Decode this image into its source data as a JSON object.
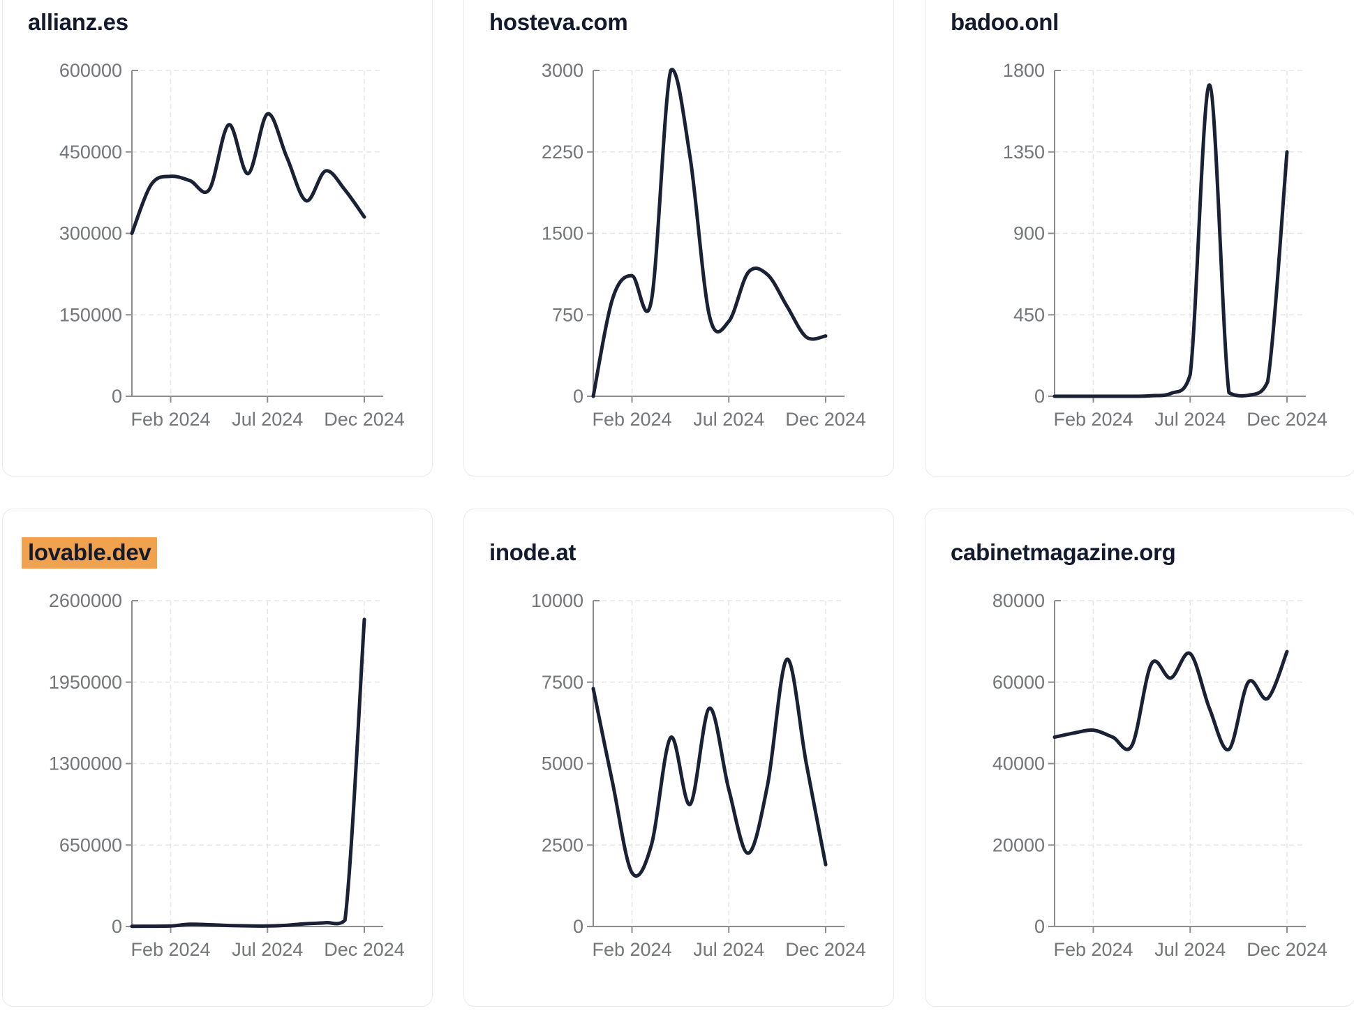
{
  "style": {
    "line_color": "#1a2135",
    "axis_color": "#8b8d91",
    "tick_label_color": "#737579",
    "grid_color": "#e5e6ea",
    "title_color": "#141a2e",
    "card_border": "#e7e9ee",
    "highlight_color": "#F0A24E",
    "card_background": "#ffffff"
  },
  "chart_data": [
    {
      "type": "line",
      "title": "allianz.es",
      "highlighted": false,
      "x": [
        "Dec 2023",
        "Jan 2024",
        "Feb 2024",
        "Mar 2024",
        "Apr 2024",
        "May 2024",
        "Jun 2024",
        "Jul 2024",
        "Aug 2024",
        "Sep 2024",
        "Oct 2024",
        "Nov 2024",
        "Dec 2024"
      ],
      "values": [
        300000,
        390000,
        405000,
        397000,
        381000,
        500000,
        410000,
        520000,
        440000,
        360000,
        415000,
        380000,
        330000
      ],
      "ylim": [
        0,
        600000
      ],
      "y_ticks": [
        0,
        150000,
        300000,
        450000,
        600000
      ],
      "x_tick_labels": [
        "Feb 2024",
        "Jul 2024",
        "Dec 2024"
      ],
      "x_tick_indices": [
        2,
        7,
        12
      ],
      "grid": true,
      "legend": null
    },
    {
      "type": "line",
      "title": "hosteva.com",
      "highlighted": false,
      "x": [
        "Dec 2023",
        "Jan 2024",
        "Feb 2024",
        "Mar 2024",
        "Apr 2024",
        "May 2024",
        "Jun 2024",
        "Jul 2024",
        "Aug 2024",
        "Sep 2024",
        "Oct 2024",
        "Nov 2024",
        "Dec 2024"
      ],
      "values": [
        0,
        900,
        1110,
        880,
        3000,
        2200,
        740,
        690,
        1140,
        1120,
        830,
        545,
        555
      ],
      "ylim": [
        0,
        3000
      ],
      "y_ticks": [
        0,
        750,
        1500,
        2250,
        3000
      ],
      "x_tick_labels": [
        "Feb 2024",
        "Jul 2024",
        "Dec 2024"
      ],
      "x_tick_indices": [
        2,
        7,
        12
      ],
      "grid": true,
      "legend": null
    },
    {
      "type": "line",
      "title": "badoo.onl",
      "highlighted": false,
      "x": [
        "Dec 2023",
        "Jan 2024",
        "Feb 2024",
        "Mar 2024",
        "Apr 2024",
        "May 2024",
        "Jun 2024",
        "Jul 2024",
        "Aug 2024",
        "Sep 2024",
        "Oct 2024",
        "Nov 2024",
        "Dec 2024"
      ],
      "values": [
        0,
        0,
        0,
        0,
        0,
        3,
        15,
        120,
        1720,
        20,
        5,
        80,
        1350
      ],
      "ylim": [
        0,
        1800
      ],
      "y_ticks": [
        0,
        450,
        900,
        1350,
        1800
      ],
      "x_tick_labels": [
        "Feb 2024",
        "Jul 2024",
        "Dec 2024"
      ],
      "x_tick_indices": [
        2,
        7,
        12
      ],
      "grid": true,
      "legend": null
    },
    {
      "type": "line",
      "title": "lovable.dev",
      "highlighted": true,
      "x": [
        "Dec 2023",
        "Jan 2024",
        "Feb 2024",
        "Mar 2024",
        "Apr 2024",
        "May 2024",
        "Jun 2024",
        "Jul 2024",
        "Aug 2024",
        "Sep 2024",
        "Oct 2024",
        "Nov 2024",
        "Dec 2024"
      ],
      "values": [
        1500,
        2500,
        4000,
        18000,
        14000,
        8000,
        5000,
        4000,
        10000,
        22000,
        30000,
        50000,
        2450000
      ],
      "ylim": [
        0,
        2600000
      ],
      "y_ticks": [
        0,
        650000,
        1300000,
        1950000,
        2600000
      ],
      "x_tick_labels": [
        "Feb 2024",
        "Jul 2024",
        "Dec 2024"
      ],
      "x_tick_indices": [
        2,
        7,
        12
      ],
      "grid": true,
      "legend": null
    },
    {
      "type": "line",
      "title": "inode.at",
      "highlighted": false,
      "x": [
        "Dec 2023",
        "Jan 2024",
        "Feb 2024",
        "Mar 2024",
        "Apr 2024",
        "May 2024",
        "Jun 2024",
        "Jul 2024",
        "Aug 2024",
        "Sep 2024",
        "Oct 2024",
        "Nov 2024",
        "Dec 2024"
      ],
      "values": [
        7300,
        4400,
        1650,
        2500,
        5800,
        3750,
        6700,
        4200,
        2250,
        4350,
        8200,
        5000,
        1900
      ],
      "ylim": [
        0,
        10000
      ],
      "y_ticks": [
        0,
        2500,
        5000,
        7500,
        10000
      ],
      "x_tick_labels": [
        "Feb 2024",
        "Jul 2024",
        "Dec 2024"
      ],
      "x_tick_indices": [
        2,
        7,
        12
      ],
      "grid": true,
      "legend": null
    },
    {
      "type": "line",
      "title": "cabinetmagazine.org",
      "highlighted": false,
      "x": [
        "Dec 2023",
        "Jan 2024",
        "Feb 2024",
        "Mar 2024",
        "Apr 2024",
        "May 2024",
        "Jun 2024",
        "Jul 2024",
        "Aug 2024",
        "Sep 2024",
        "Oct 2024",
        "Nov 2024",
        "Dec 2024"
      ],
      "values": [
        46500,
        47500,
        48200,
        46500,
        44500,
        64500,
        61000,
        67000,
        53500,
        43500,
        60000,
        56000,
        67500
      ],
      "ylim": [
        0,
        80000
      ],
      "y_ticks": [
        0,
        20000,
        40000,
        60000,
        80000
      ],
      "x_tick_labels": [
        "Feb 2024",
        "Jul 2024",
        "Dec 2024"
      ],
      "x_tick_indices": [
        2,
        7,
        12
      ],
      "grid": true,
      "legend": null
    }
  ]
}
